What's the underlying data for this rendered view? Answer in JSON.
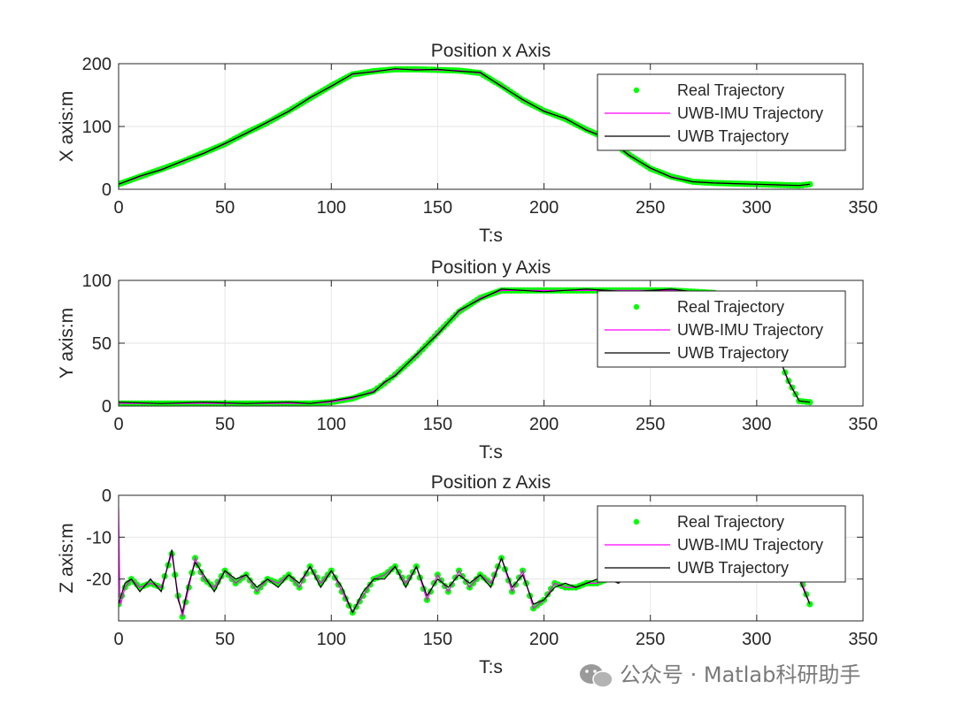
{
  "watermark": {
    "text": "公众号 · Matlab科研助手",
    "icon": "wechat-icon"
  },
  "chart_data": [
    {
      "type": "line",
      "title": "Position x Axis",
      "xlabel": "T:s",
      "ylabel": "X axis:m",
      "xlim": [
        0,
        350
      ],
      "ylim": [
        0,
        200
      ],
      "xticks": [
        "0",
        "50",
        "100",
        "150",
        "200",
        "250",
        "300",
        "350"
      ],
      "yticks": [
        "0",
        "100",
        "200"
      ],
      "grid": true,
      "legend": {
        "position": "top-right",
        "entries": [
          "Real Trajectory",
          "UWB-IMU Trajectory",
          "UWB Trajectory"
        ]
      },
      "colors": {
        "real": "#00ff00",
        "uwb_imu": "#ff00ff",
        "uwb": "#000000"
      },
      "series": [
        {
          "name": "Real Trajectory",
          "style": "markers",
          "x": [
            0,
            10,
            20,
            30,
            40,
            50,
            60,
            70,
            80,
            90,
            100,
            110,
            120,
            130,
            140,
            150,
            160,
            170,
            180,
            190,
            200,
            210,
            220,
            230,
            240,
            250,
            260,
            270,
            280,
            290,
            300,
            310,
            320,
            325
          ],
          "y": [
            8,
            20,
            32,
            44,
            58,
            72,
            90,
            106,
            125,
            145,
            165,
            183,
            188,
            191,
            191,
            190,
            189,
            185,
            165,
            142,
            125,
            112,
            95,
            80,
            55,
            33,
            20,
            12,
            10,
            9,
            8,
            7,
            6,
            8
          ]
        },
        {
          "name": "UWB-IMU Trajectory",
          "style": "line",
          "x": [
            0,
            10,
            20,
            30,
            40,
            50,
            60,
            70,
            80,
            90,
            100,
            110,
            120,
            130,
            140,
            150,
            160,
            170,
            180,
            190,
            200,
            210,
            220,
            230,
            240,
            250,
            260,
            270,
            280,
            290,
            300,
            310,
            320,
            325
          ],
          "y": [
            8,
            20,
            32,
            44,
            58,
            72,
            90,
            106,
            125,
            145,
            165,
            183,
            188,
            191,
            191,
            190,
            189,
            185,
            165,
            142,
            125,
            112,
            95,
            80,
            55,
            33,
            20,
            12,
            10,
            9,
            8,
            7,
            6,
            8
          ]
        },
        {
          "name": "UWB Trajectory",
          "style": "line",
          "x": [
            0,
            10,
            20,
            30,
            40,
            50,
            60,
            70,
            80,
            90,
            100,
            110,
            120,
            130,
            140,
            150,
            160,
            170,
            180,
            190,
            200,
            210,
            220,
            230,
            240,
            250,
            260,
            270,
            280,
            290,
            300,
            310,
            320,
            325
          ],
          "y": [
            8,
            21,
            31,
            45,
            57,
            73,
            89,
            107,
            124,
            146,
            164,
            184,
            187,
            192,
            190,
            191,
            188,
            186,
            164,
            143,
            124,
            113,
            94,
            81,
            54,
            34,
            19,
            12,
            10,
            9,
            8,
            7,
            6,
            8
          ]
        }
      ]
    },
    {
      "type": "line",
      "title": "Position y Axis",
      "xlabel": "T:s",
      "ylabel": "Y axis:m",
      "xlim": [
        0,
        350
      ],
      "ylim": [
        0,
        100
      ],
      "xticks": [
        "0",
        "50",
        "100",
        "150",
        "200",
        "250",
        "300",
        "350"
      ],
      "yticks": [
        "0",
        "50",
        "100"
      ],
      "grid": true,
      "legend": {
        "position": "top-right",
        "entries": [
          "Real Trajectory",
          "UWB-IMU Trajectory",
          "UWB Trajectory"
        ]
      },
      "colors": {
        "real": "#00ff00",
        "uwb_imu": "#ff00ff",
        "uwb": "#000000"
      },
      "series": [
        {
          "name": "Real Trajectory",
          "style": "markers",
          "x": [
            0,
            20,
            40,
            60,
            80,
            90,
            100,
            110,
            120,
            125,
            130,
            140,
            150,
            160,
            170,
            180,
            200,
            220,
            240,
            260,
            280,
            290,
            300,
            310,
            315,
            320,
            325
          ],
          "y": [
            2,
            2,
            2,
            2,
            2,
            2,
            3,
            6,
            12,
            18,
            25,
            40,
            58,
            75,
            86,
            92,
            92,
            92,
            92,
            92,
            90,
            85,
            70,
            40,
            20,
            4,
            3
          ]
        },
        {
          "name": "UWB-IMU Trajectory",
          "style": "line",
          "x": [
            0,
            20,
            40,
            60,
            80,
            90,
            100,
            110,
            120,
            125,
            130,
            140,
            150,
            160,
            170,
            180,
            200,
            220,
            240,
            260,
            280,
            290,
            300,
            310,
            315,
            320,
            325
          ],
          "y": [
            2,
            2,
            2,
            2,
            2,
            2,
            3,
            6,
            12,
            18,
            25,
            40,
            58,
            75,
            86,
            92,
            92,
            92,
            92,
            92,
            90,
            85,
            70,
            40,
            20,
            4,
            3
          ]
        },
        {
          "name": "UWB Trajectory",
          "style": "line",
          "x": [
            0,
            20,
            40,
            60,
            80,
            90,
            100,
            110,
            120,
            125,
            130,
            140,
            150,
            160,
            170,
            180,
            200,
            220,
            240,
            260,
            280,
            290,
            300,
            310,
            315,
            320,
            325
          ],
          "y": [
            3,
            2,
            3,
            2,
            3,
            2,
            4,
            7,
            11,
            19,
            24,
            41,
            57,
            76,
            85,
            93,
            91,
            93,
            91,
            93,
            89,
            86,
            69,
            41,
            19,
            4,
            3
          ]
        }
      ]
    },
    {
      "type": "line",
      "title": "Position z Axis",
      "xlabel": "T:s",
      "ylabel": "Z axis:m",
      "xlim": [
        0,
        350
      ],
      "ylim": [
        -30,
        0
      ],
      "xticks": [
        "0",
        "50",
        "100",
        "150",
        "200",
        "250",
        "300",
        "350"
      ],
      "yticks": [
        "-20",
        "-10",
        "0"
      ],
      "grid": true,
      "legend": {
        "position": "top-right",
        "entries": [
          "Real Trajectory",
          "UWB-IMU Trajectory",
          "UWB Trajectory"
        ]
      },
      "colors": {
        "real": "#00ff00",
        "uwb_imu": "#ff00ff",
        "uwb": "#000000"
      },
      "series": [
        {
          "name": "Real Trajectory",
          "style": "markers",
          "x": [
            0,
            3,
            6,
            10,
            15,
            20,
            25,
            28,
            30,
            33,
            36,
            40,
            45,
            50,
            55,
            60,
            65,
            70,
            75,
            80,
            85,
            90,
            95,
            100,
            105,
            110,
            115,
            120,
            125,
            130,
            135,
            140,
            145,
            150,
            155,
            160,
            165,
            170,
            175,
            180,
            185,
            190,
            195,
            200,
            205,
            210,
            215,
            220,
            225,
            230,
            235,
            240,
            245,
            250,
            255,
            260,
            265,
            270,
            275,
            280,
            285,
            290,
            295,
            300,
            305,
            310,
            315,
            320,
            325
          ],
          "y": [
            -26,
            -22,
            -20,
            -22,
            -21,
            -22,
            -14,
            -24,
            -29,
            -22,
            -15,
            -20,
            -22,
            -18,
            -21,
            -19,
            -23,
            -20,
            -21,
            -19,
            -22,
            -17,
            -21,
            -18,
            -23,
            -28,
            -24,
            -20,
            -19,
            -17,
            -21,
            -17,
            -25,
            -19,
            -23,
            -18,
            -22,
            -19,
            -21,
            -15,
            -23,
            -18,
            -27,
            -25,
            -21,
            -22,
            -22,
            -21,
            -21,
            -20,
            -20,
            -19,
            -20,
            -19,
            -20,
            -19,
            -19,
            -18,
            -19,
            -19,
            -18,
            -19,
            -18,
            -19,
            -19,
            -18,
            -19,
            -19,
            -26
          ]
        },
        {
          "name": "UWB-IMU Trajectory",
          "style": "line",
          "x": [
            0,
            0.6,
            1,
            3,
            6,
            10,
            15,
            20,
            25,
            28,
            30,
            33,
            36,
            40,
            45,
            50,
            55,
            60,
            65,
            70,
            75,
            80,
            85,
            90,
            95,
            100,
            105,
            110,
            115,
            120,
            125,
            130,
            135,
            140,
            145,
            150,
            155,
            160,
            165,
            170,
            175,
            180,
            185,
            190,
            195,
            200,
            205,
            210,
            215,
            220,
            225,
            230,
            235,
            240,
            245,
            250,
            255,
            260,
            265,
            270,
            275,
            280,
            285,
            290,
            295,
            300,
            305,
            310,
            315,
            320,
            325
          ],
          "y": [
            -3,
            -24,
            -26,
            -22,
            -20,
            -22,
            -21,
            -22,
            -14,
            -24,
            -29,
            -22,
            -15,
            -20,
            -22,
            -18,
            -21,
            -19,
            -23,
            -20,
            -21,
            -19,
            -22,
            -17,
            -21,
            -18,
            -23,
            -28,
            -24,
            -20,
            -19,
            -17,
            -21,
            -17,
            -25,
            -19,
            -23,
            -18,
            -22,
            -19,
            -21,
            -15,
            -23,
            -18,
            -27,
            -25,
            -21,
            -22,
            -22,
            -21,
            -21,
            -20,
            -20,
            -19,
            -20,
            -19,
            -20,
            -19,
            -19,
            -18,
            -19,
            -19,
            -18,
            -19,
            -18,
            -19,
            -19,
            -18,
            -19,
            -19,
            -26
          ]
        },
        {
          "name": "UWB Trajectory",
          "style": "line",
          "x": [
            0,
            3,
            6,
            10,
            15,
            20,
            25,
            28,
            30,
            33,
            36,
            40,
            45,
            50,
            55,
            60,
            65,
            70,
            75,
            80,
            85,
            90,
            95,
            100,
            105,
            110,
            115,
            120,
            125,
            130,
            135,
            140,
            145,
            150,
            155,
            160,
            165,
            170,
            175,
            180,
            185,
            190,
            195,
            200,
            205,
            210,
            215,
            220,
            225,
            230,
            235,
            240,
            245,
            250,
            255,
            260,
            265,
            270,
            275,
            280,
            285,
            290,
            295,
            300,
            305,
            310,
            315,
            320,
            325
          ],
          "y": [
            -26,
            -21,
            -20,
            -23,
            -20,
            -23,
            -13,
            -25,
            -28,
            -21,
            -16,
            -19,
            -23,
            -18,
            -20,
            -19,
            -22,
            -20,
            -22,
            -19,
            -21,
            -17,
            -22,
            -18,
            -22,
            -28,
            -23,
            -20,
            -20,
            -17,
            -22,
            -17,
            -24,
            -20,
            -22,
            -19,
            -21,
            -19,
            -22,
            -15,
            -22,
            -19,
            -26,
            -25,
            -22,
            -21,
            -22,
            -21,
            -20,
            -20,
            -21,
            -19,
            -19,
            -20,
            -19,
            -19,
            -20,
            -18,
            -19,
            -18,
            -19,
            -18,
            -19,
            -18,
            -19,
            -19,
            -18,
            -20,
            -26
          ]
        }
      ]
    }
  ]
}
